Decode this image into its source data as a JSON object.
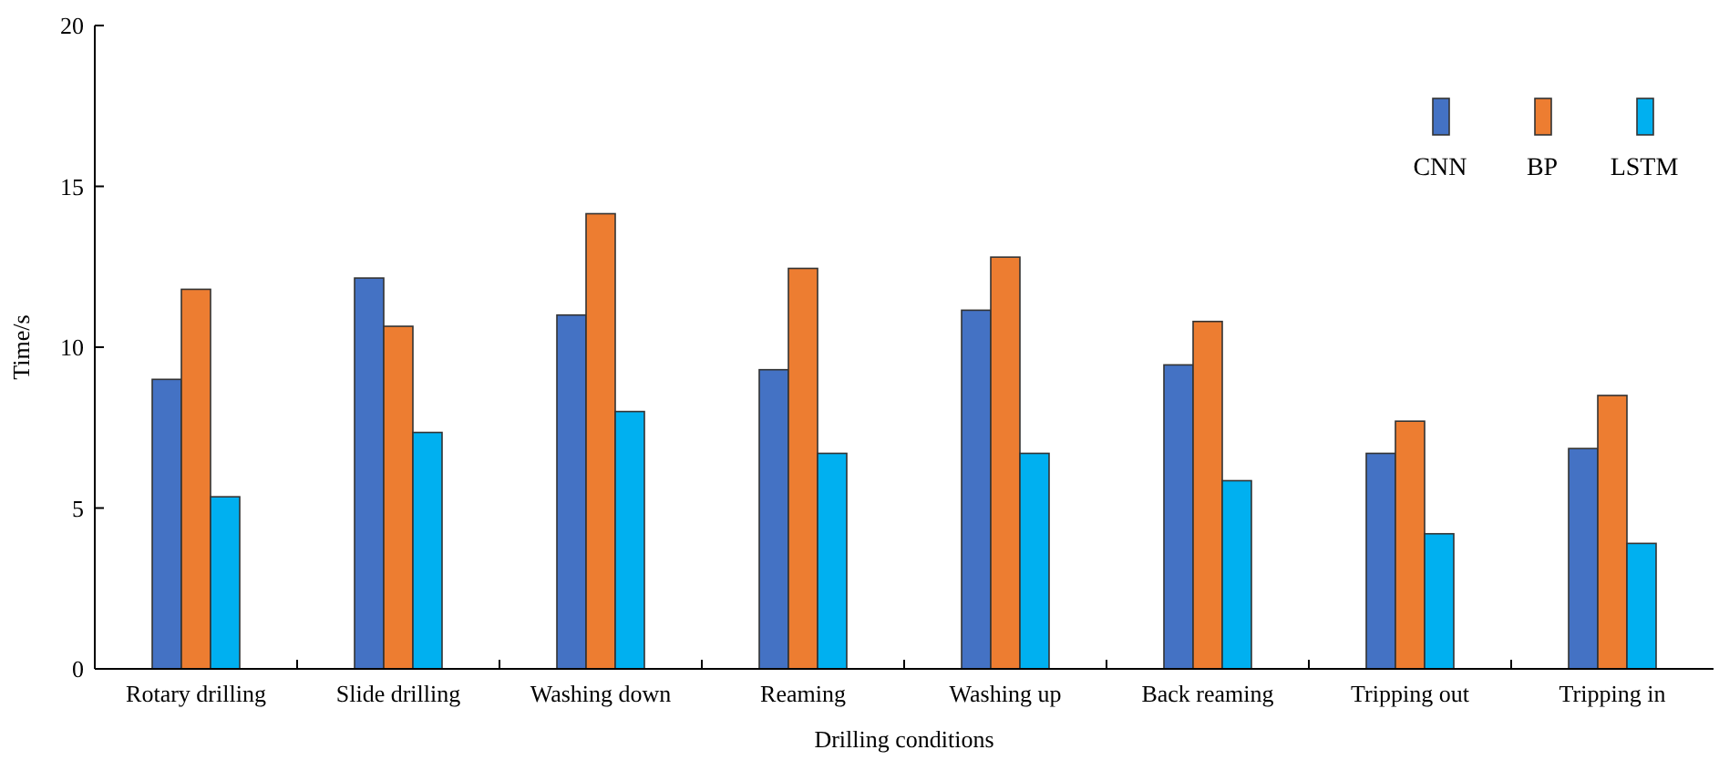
{
  "chart_data": {
    "type": "bar",
    "xlabel": "Drilling conditions",
    "ylabel": "Time/s",
    "categories": [
      "Rotary drilling",
      "Slide drilling",
      "Washing down",
      "Reaming",
      "Washing up",
      "Back reaming",
      "Tripping out",
      "Tripping in"
    ],
    "series": [
      {
        "name": "CNN",
        "color": "#4472c4",
        "values": [
          9.0,
          12.15,
          11.0,
          9.3,
          11.15,
          9.45,
          6.7,
          6.85
        ]
      },
      {
        "name": "BP",
        "color": "#ed7d31",
        "values": [
          11.8,
          10.65,
          14.15,
          12.45,
          12.8,
          10.8,
          7.7,
          8.5
        ]
      },
      {
        "name": "LSTM",
        "color": "#00b0f0",
        "values": [
          5.35,
          7.35,
          8.0,
          6.7,
          6.7,
          5.85,
          4.2,
          3.9
        ]
      }
    ],
    "ylim": [
      0,
      20
    ],
    "yticks": [
      0,
      5,
      10,
      15,
      20
    ],
    "legend": "top right"
  }
}
